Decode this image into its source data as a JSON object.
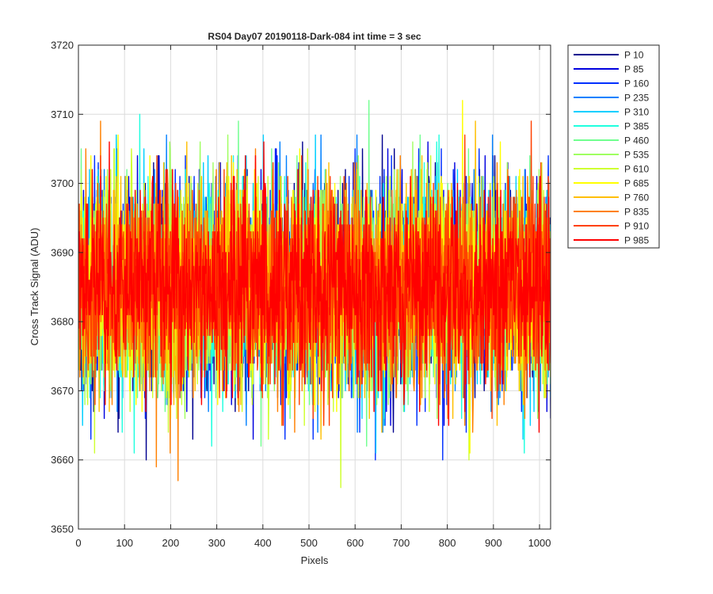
{
  "chart_data": {
    "type": "line",
    "title": "RS04 Day07 20190118-Dark-084 int time = 3 sec",
    "xlabel": "Pixels",
    "ylabel": "Cross Track Signal (ADU)",
    "xlim": [
      0,
      1024
    ],
    "ylim": [
      3650,
      3720
    ],
    "x_ticks": [
      0,
      100,
      200,
      300,
      400,
      500,
      600,
      700,
      800,
      900,
      1000
    ],
    "y_ticks": [
      3650,
      3660,
      3670,
      3680,
      3690,
      3700,
      3710,
      3720
    ],
    "grid": true,
    "legend_position": "outside top-right",
    "x": {
      "start": 1,
      "end": 1024,
      "step": 1
    },
    "series_summary": "Each series is ~1024 points of noisy dark signal centered near 3685 ADU (mostly 3668-3702, extremes 3655-3713)",
    "series": [
      {
        "name": "P 10",
        "color": "#00008f",
        "mean": 3685,
        "std": 7.2,
        "min": 3657,
        "max": 3713
      },
      {
        "name": "P 85",
        "color": "#0000df",
        "mean": 3685,
        "std": 7.2,
        "min": 3658,
        "max": 3713
      },
      {
        "name": "P 160",
        "color": "#0030ff",
        "mean": 3685,
        "std": 7.2,
        "min": 3660,
        "max": 3705
      },
      {
        "name": "P 235",
        "color": "#0080ff",
        "mean": 3685,
        "std": 7.2,
        "min": 3657,
        "max": 3707
      },
      {
        "name": "P 310",
        "color": "#00cfff",
        "mean": 3685,
        "std": 7.2,
        "min": 3660,
        "max": 3707
      },
      {
        "name": "P 385",
        "color": "#20ffdf",
        "mean": 3685,
        "std": 7.2,
        "min": 3661,
        "max": 3710
      },
      {
        "name": "P 460",
        "color": "#70ff8f",
        "mean": 3685,
        "std": 7.2,
        "min": 3662,
        "max": 3712
      },
      {
        "name": "P 535",
        "color": "#9fff60",
        "mean": 3685,
        "std": 7.2,
        "min": 3659,
        "max": 3707
      },
      {
        "name": "P 610",
        "color": "#cfff30",
        "mean": 3685,
        "std": 7.2,
        "min": 3656,
        "max": 3708
      },
      {
        "name": "P 685",
        "color": "#ffff00",
        "mean": 3685,
        "std": 7.2,
        "min": 3660,
        "max": 3713
      },
      {
        "name": "P 760",
        "color": "#ffbf00",
        "mean": 3685,
        "std": 7.2,
        "min": 3655,
        "max": 3709
      },
      {
        "name": "P 835",
        "color": "#ff8000",
        "mean": 3685,
        "std": 7.2,
        "min": 3657,
        "max": 3709
      },
      {
        "name": "P 910",
        "color": "#ff4000",
        "mean": 3685,
        "std": 7.2,
        "min": 3660,
        "max": 3713
      },
      {
        "name": "P 985",
        "color": "#ff0000",
        "mean": 3685,
        "std": 7.0,
        "min": 3660,
        "max": 3706
      }
    ]
  }
}
